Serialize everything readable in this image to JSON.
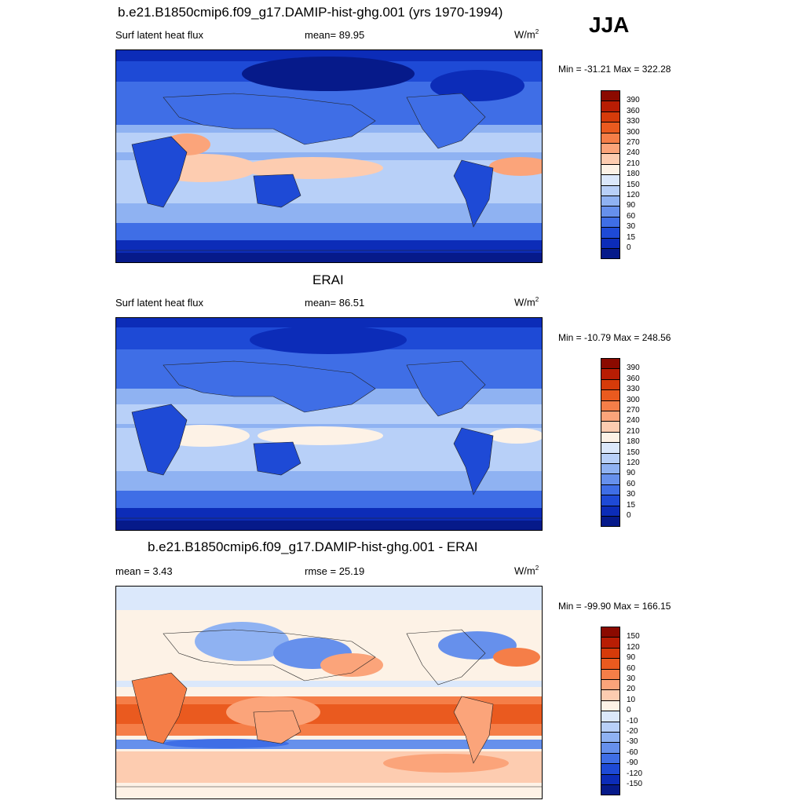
{
  "season": "JJA",
  "panels": [
    {
      "title": "b.e21.B1850cmip6.f09_g17.DAMIP-hist-ghg.001 (yrs 1970-1994)",
      "left": "Surf latent heat flux",
      "center": "mean=  89.95",
      "units": "W/m",
      "units_sup": "2",
      "minmax": "Min = -31.21 Max = 322.28",
      "scale": "abs"
    },
    {
      "title": "ERAI",
      "left": "Surf latent heat flux",
      "center": "mean=  86.51",
      "units": "W/m",
      "units_sup": "2",
      "minmax": "Min = -10.79 Max = 248.56",
      "scale": "abs"
    },
    {
      "title": "b.e21.B1850cmip6.f09_g17.DAMIP-hist-ghg.001 - ERAI",
      "left": "mean =   3.43",
      "center": "rmse =  25.19",
      "units": "W/m",
      "units_sup": "2",
      "minmax": "Min = -99.90 Max = 166.15",
      "scale": "diff"
    }
  ],
  "colorbars": {
    "abs": {
      "labels": [
        "390",
        "360",
        "330",
        "300",
        "270",
        "240",
        "210",
        "180",
        "150",
        "120",
        "90",
        "60",
        "30",
        "15",
        "0"
      ],
      "colors": [
        "#8b0a00",
        "#b81d04",
        "#d63b0a",
        "#ea5a1f",
        "#f57e48",
        "#fba47a",
        "#fdccb0",
        "#fdf2e6",
        "#dbe8fb",
        "#b8d0f8",
        "#8fb2f2",
        "#6690ec",
        "#3f6ee6",
        "#1e4ad6",
        "#0c2cb8",
        "#061a8a"
      ]
    },
    "diff": {
      "labels": [
        "150",
        "120",
        "90",
        "60",
        "30",
        "20",
        "10",
        "0",
        "-10",
        "-20",
        "-30",
        "-60",
        "-90",
        "-120",
        "-150"
      ],
      "colors": [
        "#8b0a00",
        "#b81d04",
        "#d63b0a",
        "#ea5a1f",
        "#f57e48",
        "#fba47a",
        "#fdccb0",
        "#fdf2e6",
        "#dbe8fb",
        "#b8d0f8",
        "#8fb2f2",
        "#6690ec",
        "#3f6ee6",
        "#1e4ad6",
        "#0c2cb8",
        "#061a8a"
      ]
    }
  }
}
